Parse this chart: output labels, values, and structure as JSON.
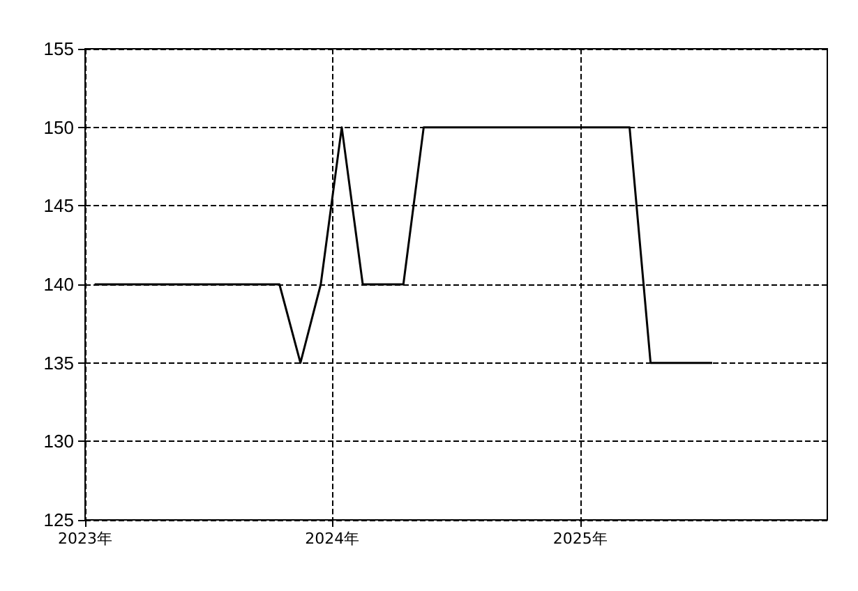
{
  "chart_data": {
    "type": "line",
    "x": [
      "2023-01-15",
      "2023-10-15",
      "2023-11-15",
      "2023-12-15",
      "2024-01-15",
      "2024-02-15",
      "2024-04-15",
      "2024-05-15",
      "2025-03-15",
      "2025-04-15",
      "2025-07-15"
    ],
    "series": [
      {
        "color": "#000000",
        "values": [
          140,
          140,
          135,
          140,
          150,
          140,
          140,
          150,
          150,
          135,
          135
        ]
      }
    ],
    "xlim": [
      "2023-01-01",
      "2026-01-01"
    ],
    "xticks": [
      {
        "value": "2023-01-01",
        "label": "2023年"
      },
      {
        "value": "2024-01-01",
        "label": "2024年"
      },
      {
        "value": "2025-01-01",
        "label": "2025年"
      }
    ],
    "ylim": [
      125,
      155
    ],
    "yticks": [
      125,
      130,
      135,
      140,
      145,
      150,
      155
    ],
    "grid": true,
    "marker": "none",
    "line_style": "solid"
  }
}
